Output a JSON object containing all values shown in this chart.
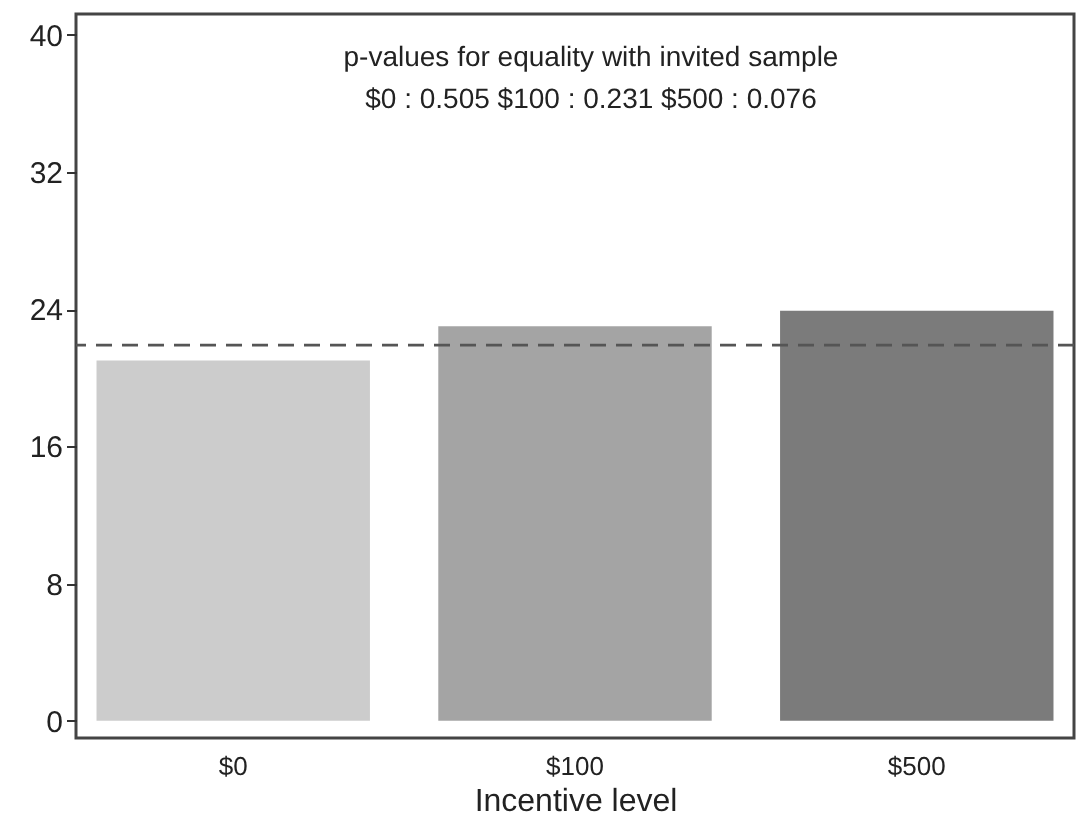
{
  "chart_data": {
    "type": "bar",
    "xlabel": "Incentive level",
    "categories": [
      "$0",
      "$100",
      "$500"
    ],
    "values": [
      21.0,
      23.0,
      23.9
    ],
    "colors": [
      "#cccccc",
      "#a4a4a4",
      "#7b7b7b"
    ],
    "ylim": [
      -1,
      41.2
    ],
    "yticks": [
      0,
      8,
      16,
      24,
      32,
      40
    ],
    "grid": false,
    "ref_lines": [
      {
        "axis": "y",
        "value": 21.9,
        "color": "#555555",
        "line_style": "dashed"
      }
    ],
    "annotations": [
      "p-values for equality with invited sample",
      "$0 :   0.505   $100 :   0.231   $500 :   0.076"
    ]
  }
}
